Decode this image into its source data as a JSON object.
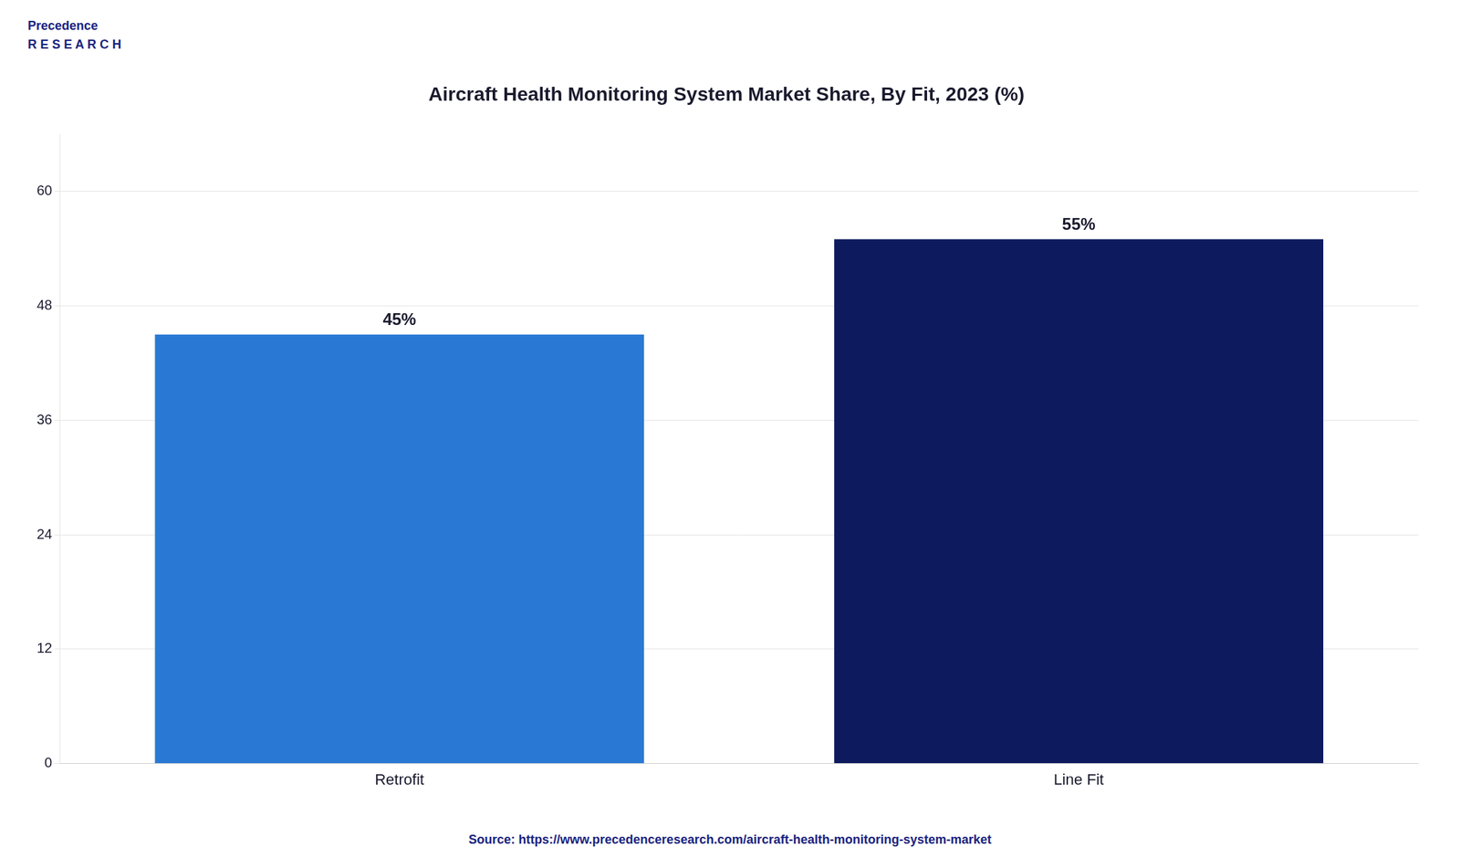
{
  "chart_data": {
    "type": "bar",
    "title": "Aircraft Health Monitoring System Market Share, By Fit, 2023 (%)",
    "categories": [
      "Retrofit",
      "Line Fit"
    ],
    "values": [
      45,
      55
    ],
    "value_labels": [
      "45%",
      "55%"
    ],
    "colors": [
      "#2979d4",
      "#0d1b5e"
    ],
    "ylim": [
      0,
      66
    ],
    "yticks": [
      0,
      12,
      24,
      36,
      48,
      60
    ],
    "grid": true,
    "data_labels": true,
    "annotations": [
      "Precedence\nR E S E A R C H",
      "Source: https://www.precedenceresearch.com/aircraft-health-monitoring-system-market"
    ]
  }
}
